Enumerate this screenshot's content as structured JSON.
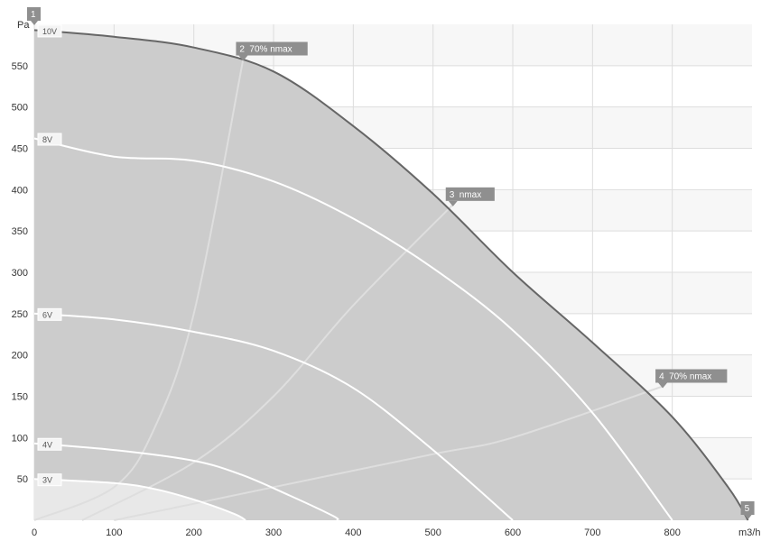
{
  "chart_data": {
    "type": "line",
    "xlabel": "m3/h",
    "ylabel": "Pa",
    "xlim": [
      0,
      900
    ],
    "ylim": [
      0,
      600
    ],
    "x_ticks": [
      0,
      100,
      200,
      300,
      400,
      500,
      600,
      700,
      800
    ],
    "y_ticks": [
      50,
      100,
      150,
      200,
      250,
      300,
      350,
      400,
      450,
      500,
      550
    ],
    "grid": true,
    "curves": [
      {
        "name": "10V",
        "points": [
          [
            0,
            593
          ],
          [
            100,
            585
          ],
          [
            200,
            572
          ],
          [
            300,
            543
          ],
          [
            400,
            477
          ],
          [
            500,
            395
          ],
          [
            600,
            300
          ],
          [
            700,
            215
          ],
          [
            800,
            125
          ],
          [
            870,
            40
          ],
          [
            895,
            0
          ]
        ]
      },
      {
        "name": "8V",
        "points": [
          [
            0,
            462
          ],
          [
            100,
            440
          ],
          [
            200,
            435
          ],
          [
            300,
            410
          ],
          [
            400,
            365
          ],
          [
            500,
            305
          ],
          [
            600,
            230
          ],
          [
            700,
            130
          ],
          [
            800,
            0
          ]
        ]
      },
      {
        "name": "6V",
        "points": [
          [
            0,
            250
          ],
          [
            100,
            243
          ],
          [
            200,
            228
          ],
          [
            300,
            205
          ],
          [
            400,
            160
          ],
          [
            500,
            85
          ],
          [
            600,
            0
          ]
        ]
      },
      {
        "name": "4V",
        "points": [
          [
            0,
            93
          ],
          [
            100,
            85
          ],
          [
            200,
            72
          ],
          [
            260,
            55
          ],
          [
            320,
            30
          ],
          [
            375,
            5
          ],
          [
            380,
            0
          ]
        ]
      },
      {
        "name": "3V",
        "points": [
          [
            0,
            50
          ],
          [
            100,
            45
          ],
          [
            150,
            38
          ],
          [
            200,
            25
          ],
          [
            250,
            8
          ],
          [
            265,
            0
          ]
        ]
      }
    ],
    "efficiency_lines": [
      {
        "points": [
          [
            0,
            0
          ],
          [
            100,
            40
          ],
          [
            150,
            110
          ],
          [
            200,
            250
          ],
          [
            262,
            558
          ]
        ]
      },
      {
        "points": [
          [
            60,
            0
          ],
          [
            200,
            70
          ],
          [
            300,
            150
          ],
          [
            400,
            260
          ],
          [
            525,
            382
          ]
        ]
      },
      {
        "points": [
          [
            100,
            0
          ],
          [
            300,
            40
          ],
          [
            500,
            80
          ],
          [
            600,
            100
          ],
          [
            788,
            162
          ]
        ]
      }
    ],
    "markers": [
      {
        "id": "1",
        "label": "",
        "x": 0,
        "y": 600
      },
      {
        "id": "2",
        "label": "70% nmax",
        "x": 262,
        "y": 558
      },
      {
        "id": "3",
        "label": "nmax",
        "x": 525,
        "y": 382
      },
      {
        "id": "4",
        "label": "70% nmax",
        "x": 788,
        "y": 162
      },
      {
        "id": "5",
        "label": "",
        "x": 895,
        "y": 0
      }
    ],
    "colors": {
      "area_fill": "#cccccc",
      "area_light": "#e8e8e8",
      "boundary": "#666666",
      "curve": "#ffffff",
      "efficiency": "#dedede",
      "marker": "#8f8f8f",
      "grid": "#dddddd",
      "text": "#333333"
    }
  }
}
